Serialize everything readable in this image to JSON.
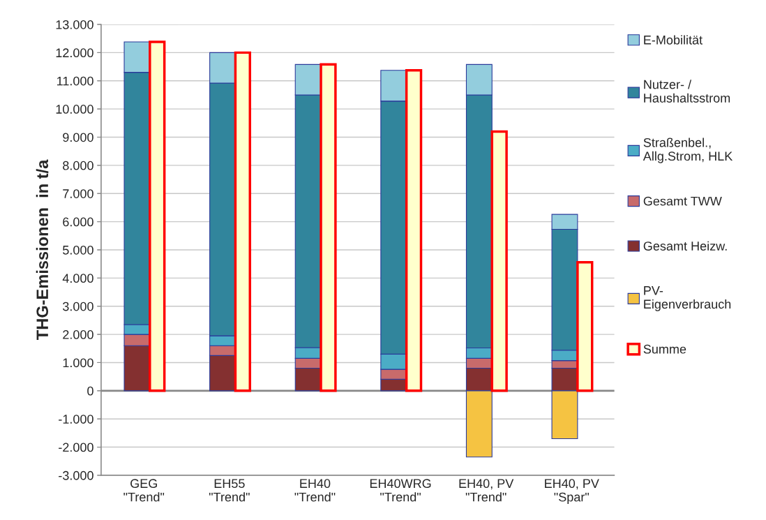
{
  "chart_data": [
    {
      "type": "bar",
      "stacked": true,
      "ylabel": "THG-Emissionen  in t/a",
      "categories": [
        "GEG\n\"Trend\"",
        "EH55\n\"Trend\"",
        "EH40\n\"Trend\"",
        "EH40WRG\n\"Trend\"",
        "EH40, PV\n\"Trend\"",
        "EH40, PV\n\"Spar\""
      ],
      "series": [
        {
          "name": "Gesamt Heizw.",
          "color": "#843030",
          "values": [
            1600,
            1250,
            800,
            410,
            800,
            800
          ]
        },
        {
          "name": "Gesamt TWW",
          "color": "#c86b6b",
          "values": [
            400,
            350,
            350,
            350,
            350,
            270
          ]
        },
        {
          "name": "Straßenbel.,\nAllg.Strom, HLK",
          "color": "#4bacc6",
          "values": [
            350,
            350,
            380,
            540,
            370,
            370
          ]
        },
        {
          "name": "Nutzer- /\nHaushaltsstrom",
          "color": "#31859c",
          "values": [
            8950,
            8970,
            8970,
            8980,
            8980,
            4290
          ]
        },
        {
          "name": "E-Mobilität",
          "color": "#93cddd",
          "values": [
            1080,
            1080,
            1080,
            1090,
            1080,
            530
          ]
        },
        {
          "name": "PV-\nEigenverbrauch",
          "color": "#f5c342",
          "values": [
            null,
            null,
            null,
            null,
            -2350,
            -1700
          ]
        }
      ],
      "ylim": [
        -3000,
        13000
      ],
      "yticks": [
        {
          "value": -3000,
          "label": "-3.000"
        },
        {
          "value": -2000,
          "label": "-2.000"
        },
        {
          "value": -1000,
          "label": "-1.000"
        },
        0,
        {
          "value": 1000,
          "label": "1.000"
        },
        {
          "value": 2000,
          "label": "2.000"
        },
        {
          "value": 3000,
          "label": "3.000"
        },
        {
          "value": 4000,
          "label": "4.000"
        },
        {
          "value": 5000,
          "label": "5.000"
        },
        {
          "value": 6000,
          "label": "6.000"
        },
        {
          "value": 7000,
          "label": "7.000"
        },
        {
          "value": 8000,
          "label": "8.000"
        },
        {
          "value": 9000,
          "label": "9.000"
        },
        {
          "value": 10000,
          "label": "10.000"
        },
        {
          "value": 11000,
          "label": "11.000"
        },
        {
          "value": 12000,
          "label": "12.000"
        },
        {
          "value": 13000,
          "label": "13.000"
        }
      ],
      "grid": "y",
      "legend": "right"
    },
    {
      "type": "bar",
      "categories": [
        null,
        null,
        null,
        null,
        null,
        null
      ],
      "series": [
        {
          "name": "Summe",
          "color": "#ffffcc",
          "values": [
            12380,
            12000,
            11580,
            11370,
            9200,
            4560
          ]
        }
      ],
      "ylim": [
        -3000,
        13000
      ],
      "yticks": [
        -3000,
        -2000,
        -1000,
        0,
        1000,
        2000,
        3000,
        4000,
        5000,
        6000,
        7000,
        8000,
        9000,
        10000,
        11000,
        12000,
        13000
      ],
      "tick_labels": false,
      "legend": "right"
    }
  ]
}
